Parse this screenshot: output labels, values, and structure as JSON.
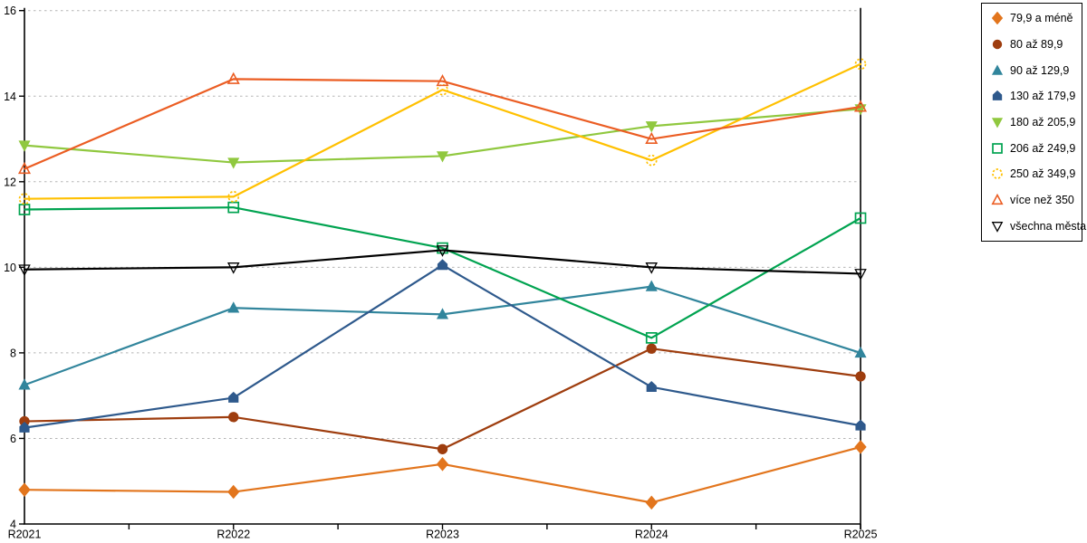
{
  "chart_data": {
    "type": "line",
    "categories": [
      "R2021",
      "R2022",
      "R2023",
      "R2024",
      "R2025"
    ],
    "series": [
      {
        "name": "79,9 a méně",
        "color": "#E2751D",
        "marker": "diamond",
        "fill": "filled",
        "values": [
          4.8,
          4.75,
          5.4,
          4.5,
          5.8
        ]
      },
      {
        "name": "80 až 89,9",
        "color": "#9E3D0E",
        "marker": "circle",
        "fill": "filled",
        "values": [
          6.4,
          6.5,
          5.75,
          8.1,
          7.45
        ]
      },
      {
        "name": "90 až 129,9",
        "color": "#31859C",
        "marker": "triangle-up",
        "fill": "filled",
        "values": [
          7.25,
          9.05,
          8.9,
          9.55,
          8.0
        ]
      },
      {
        "name": "130 až 179,9",
        "color": "#2E598C",
        "marker": "pentagon",
        "fill": "filled",
        "values": [
          6.25,
          6.95,
          10.05,
          7.2,
          6.3
        ]
      },
      {
        "name": "180 až 205,9",
        "color": "#90C83F",
        "marker": "triangle-down",
        "fill": "filled",
        "values": [
          12.85,
          12.45,
          12.6,
          13.3,
          13.7
        ]
      },
      {
        "name": "206 až 249,9",
        "color": "#00A350",
        "marker": "square",
        "fill": "open",
        "values": [
          11.35,
          11.4,
          10.45,
          8.35,
          11.15
        ]
      },
      {
        "name": "250 až 349,9",
        "color": "#FFC000",
        "marker": "circle-dashed",
        "fill": "open",
        "values": [
          11.6,
          11.65,
          14.15,
          12.5,
          14.75
        ]
      },
      {
        "name": "více než 350",
        "color": "#EB5D23",
        "marker": "triangle-up",
        "fill": "open",
        "values": [
          12.3,
          14.4,
          14.35,
          13.0,
          13.75
        ]
      },
      {
        "name": "všechna města",
        "color": "#000000",
        "marker": "triangle-down",
        "fill": "open",
        "values": [
          9.95,
          10.0,
          10.4,
          10.0,
          9.85
        ]
      }
    ],
    "title": "",
    "xlabel": "",
    "ylabel": "",
    "ylim": [
      4,
      16
    ],
    "y_ticks": [
      4,
      6,
      8,
      10,
      12,
      14,
      16
    ],
    "grid": "horizontal-dashed",
    "grid_color": "#b5b5b5",
    "axis_color": "#000000",
    "legend_position": "outside-top-right"
  }
}
